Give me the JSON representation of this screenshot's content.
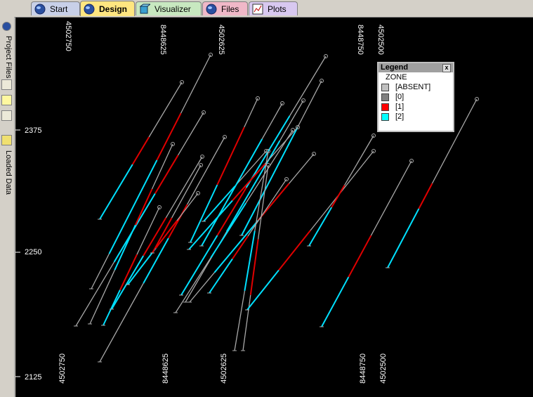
{
  "tabs": [
    {
      "label": "Start",
      "icon": "globe-icon",
      "bg": "#c8d0e8"
    },
    {
      "label": "Design",
      "icon": "globe-icon",
      "bg": "#ffe680"
    },
    {
      "label": "Visualizer",
      "icon": "cube-icon",
      "bg": "#c8e8c0"
    },
    {
      "label": "Files",
      "icon": "globe-icon",
      "bg": "#f0b8c8"
    },
    {
      "label": "Plots",
      "icon": "chart-icon",
      "bg": "#d8c8f0"
    }
  ],
  "sidebar": {
    "project_files": "Project Files",
    "loaded_data": "Loaded Data"
  },
  "axes": {
    "top_labels": [
      "4502750",
      "8448625",
      "4502625",
      "8448750",
      "4502500"
    ],
    "bottom_labels": [
      "4502750",
      "8448625",
      "4502625",
      "8448750",
      "4502500"
    ],
    "y_labels": [
      "2375",
      "2250",
      "2125"
    ]
  },
  "legend": {
    "title": "Legend",
    "zone_label": "ZONE",
    "close": "x",
    "items": [
      {
        "label": "[ABSENT]",
        "color": "#c0c0c0"
      },
      {
        "label": "[0]",
        "color": "#808080"
      },
      {
        "label": "[1]",
        "color": "#ff0000"
      },
      {
        "label": "[2]",
        "color": "#00ffff"
      }
    ]
  },
  "colors": {
    "absent": "#a8a8a8",
    "zone1": "#e00000",
    "zone2": "#00e0ff"
  }
}
